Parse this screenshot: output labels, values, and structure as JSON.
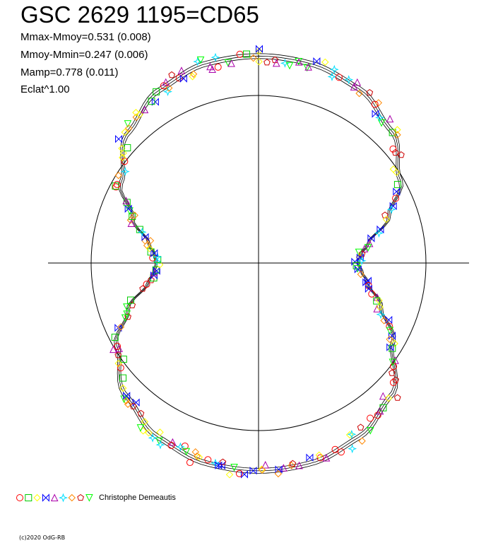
{
  "chart_data": {
    "type": "scatter",
    "title": "GSC 2629 1195=CD65",
    "stats": [
      "Mmax-Mmoy=0.531 (0.008)",
      "Mmoy-Mmin=0.247 (0.006)",
      "Mamp=0.778 (0.011)",
      "Eclat^1.00"
    ],
    "observer": "Christophe Demeautis",
    "marker_colors": [
      "#ff0000",
      "#00cc00",
      "#ffff00",
      "#0000ff",
      "#aa00aa",
      "#00e0ff",
      "#ff8800",
      "#cc0000",
      "#00ff00"
    ],
    "marker_shapes": [
      "circle",
      "square",
      "diamond",
      "bowtie-x",
      "triangle-up",
      "star",
      "diamond",
      "pentagon",
      "triangle-down"
    ],
    "curve_color": "#000000",
    "reference_circle_color": "#000000",
    "polar_model": {
      "description_radii_relative_to_reference_circle": true,
      "max_radius": 1.235,
      "min_radius": 0.593,
      "samples": [
        [
          0,
          1.235
        ],
        [
          15,
          1.23
        ],
        [
          30,
          1.2
        ],
        [
          45,
          1.12
        ],
        [
          60,
          0.98
        ],
        [
          70,
          0.83
        ],
        [
          80,
          0.665
        ],
        [
          85,
          0.615
        ],
        [
          90,
          0.593
        ],
        [
          95,
          0.62
        ],
        [
          100,
          0.66
        ],
        [
          110,
          0.78
        ],
        [
          120,
          0.93
        ],
        [
          135,
          1.12
        ],
        [
          150,
          1.2
        ],
        [
          165,
          1.235
        ],
        [
          180,
          1.24
        ],
        [
          195,
          1.235
        ],
        [
          210,
          1.2
        ],
        [
          225,
          1.12
        ],
        [
          240,
          0.98
        ],
        [
          250,
          0.83
        ],
        [
          260,
          0.67
        ],
        [
          265,
          0.625
        ],
        [
          270,
          0.61
        ],
        [
          275,
          0.625
        ],
        [
          280,
          0.665
        ],
        [
          290,
          0.8
        ],
        [
          300,
          0.95
        ],
        [
          315,
          1.1
        ],
        [
          330,
          1.19
        ],
        [
          345,
          1.23
        ],
        [
          360,
          1.235
        ]
      ]
    },
    "footer": "(c)2020 OdG-RB"
  }
}
